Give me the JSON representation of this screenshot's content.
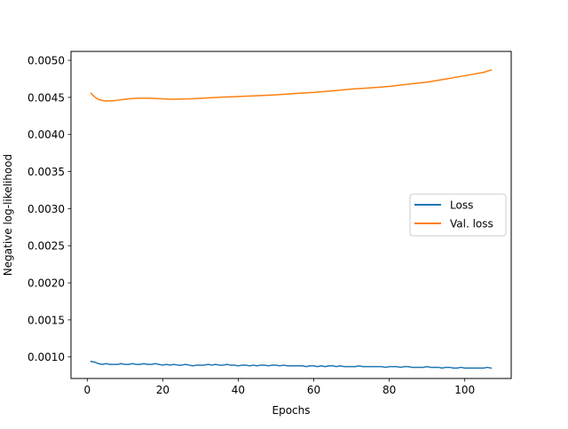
{
  "chart_data": {
    "type": "line",
    "title": "",
    "xlabel": "Epochs",
    "ylabel": "Negative log-likelihood",
    "xlim": [
      -4.3,
      112.3
    ],
    "ylim": [
      0.00071,
      0.00512
    ],
    "xticks": [
      0,
      20,
      40,
      60,
      80,
      100
    ],
    "xtick_labels": [
      "0",
      "20",
      "40",
      "60",
      "80",
      "100"
    ],
    "yticks": [
      0.001,
      0.0015,
      0.002,
      0.0025,
      0.003,
      0.0035,
      0.004,
      0.0045,
      0.005
    ],
    "ytick_labels": [
      "0.0010",
      "0.0015",
      "0.0020",
      "0.0025",
      "0.0030",
      "0.0035",
      "0.0040",
      "0.0045",
      "0.0050"
    ],
    "grid": false,
    "legend_position": "center-right",
    "series": [
      {
        "name": "Loss",
        "color": "#1f77b4",
        "x": [
          1,
          2,
          3,
          4,
          5,
          6,
          7,
          8,
          9,
          10,
          11,
          12,
          13,
          14,
          15,
          16,
          17,
          18,
          19,
          20,
          21,
          22,
          23,
          24,
          25,
          26,
          27,
          28,
          29,
          30,
          31,
          32,
          33,
          34,
          35,
          36,
          37,
          38,
          39,
          40,
          41,
          42,
          43,
          44,
          45,
          46,
          47,
          48,
          49,
          50,
          51,
          52,
          53,
          54,
          55,
          56,
          57,
          58,
          59,
          60,
          61,
          62,
          63,
          64,
          65,
          66,
          67,
          68,
          69,
          70,
          71,
          72,
          73,
          74,
          75,
          76,
          77,
          78,
          79,
          80,
          81,
          82,
          83,
          84,
          85,
          86,
          87,
          88,
          89,
          90,
          91,
          92,
          93,
          94,
          95,
          96,
          97,
          98,
          99,
          100,
          101,
          102,
          103,
          104,
          105,
          106,
          107
        ],
        "y": [
          0.00094,
          0.00093,
          0.00091,
          0.0009,
          0.00091,
          0.0009,
          0.0009,
          0.0009,
          0.00091,
          0.0009,
          0.0009,
          0.00091,
          0.0009,
          0.0009,
          0.00091,
          0.0009,
          0.0009,
          0.00091,
          0.0009,
          0.00089,
          0.0009,
          0.00089,
          0.0009,
          0.00089,
          0.00089,
          0.0009,
          0.00089,
          0.00088,
          0.00089,
          0.00089,
          0.00089,
          0.0009,
          0.00089,
          0.0009,
          0.00089,
          0.00089,
          0.0009,
          0.00089,
          0.00089,
          0.00088,
          0.00089,
          0.00089,
          0.00088,
          0.00089,
          0.00088,
          0.00089,
          0.00089,
          0.00088,
          0.00089,
          0.00089,
          0.00088,
          0.00089,
          0.00088,
          0.00088,
          0.00088,
          0.00088,
          0.00088,
          0.00087,
          0.00088,
          0.00088,
          0.00087,
          0.00088,
          0.00087,
          0.00088,
          0.00088,
          0.00087,
          0.00088,
          0.00087,
          0.00087,
          0.00087,
          0.00087,
          0.00088,
          0.00087,
          0.00087,
          0.00087,
          0.00087,
          0.00087,
          0.00087,
          0.00086,
          0.00087,
          0.00087,
          0.00087,
          0.00086,
          0.00087,
          0.00087,
          0.00086,
          0.00086,
          0.00086,
          0.00086,
          0.00087,
          0.00086,
          0.00086,
          0.00086,
          0.00085,
          0.00086,
          0.00086,
          0.00085,
          0.00085,
          0.00086,
          0.00085,
          0.00085,
          0.00085,
          0.00085,
          0.00085,
          0.00085,
          0.00086,
          0.00085
        ]
      },
      {
        "name": "Val. loss",
        "color": "#ff7f0e",
        "x": [
          1,
          2,
          3,
          4,
          5,
          6,
          7,
          8,
          10,
          12,
          14,
          16,
          18,
          20,
          22,
          25,
          28,
          30,
          35,
          40,
          45,
          50,
          55,
          60,
          65,
          70,
          75,
          80,
          85,
          90,
          95,
          100,
          105,
          107
        ],
        "y": [
          0.004555,
          0.004505,
          0.004472,
          0.004458,
          0.004452,
          0.004452,
          0.004455,
          0.004462,
          0.004475,
          0.004485,
          0.00449,
          0.00449,
          0.004485,
          0.00448,
          0.004475,
          0.004478,
          0.004482,
          0.004488,
          0.004502,
          0.004512,
          0.004522,
          0.004535,
          0.004552,
          0.004568,
          0.004588,
          0.004612,
          0.004628,
          0.004648,
          0.004678,
          0.004706,
          0.004748,
          0.004792,
          0.004838,
          0.00487
        ]
      }
    ]
  }
}
